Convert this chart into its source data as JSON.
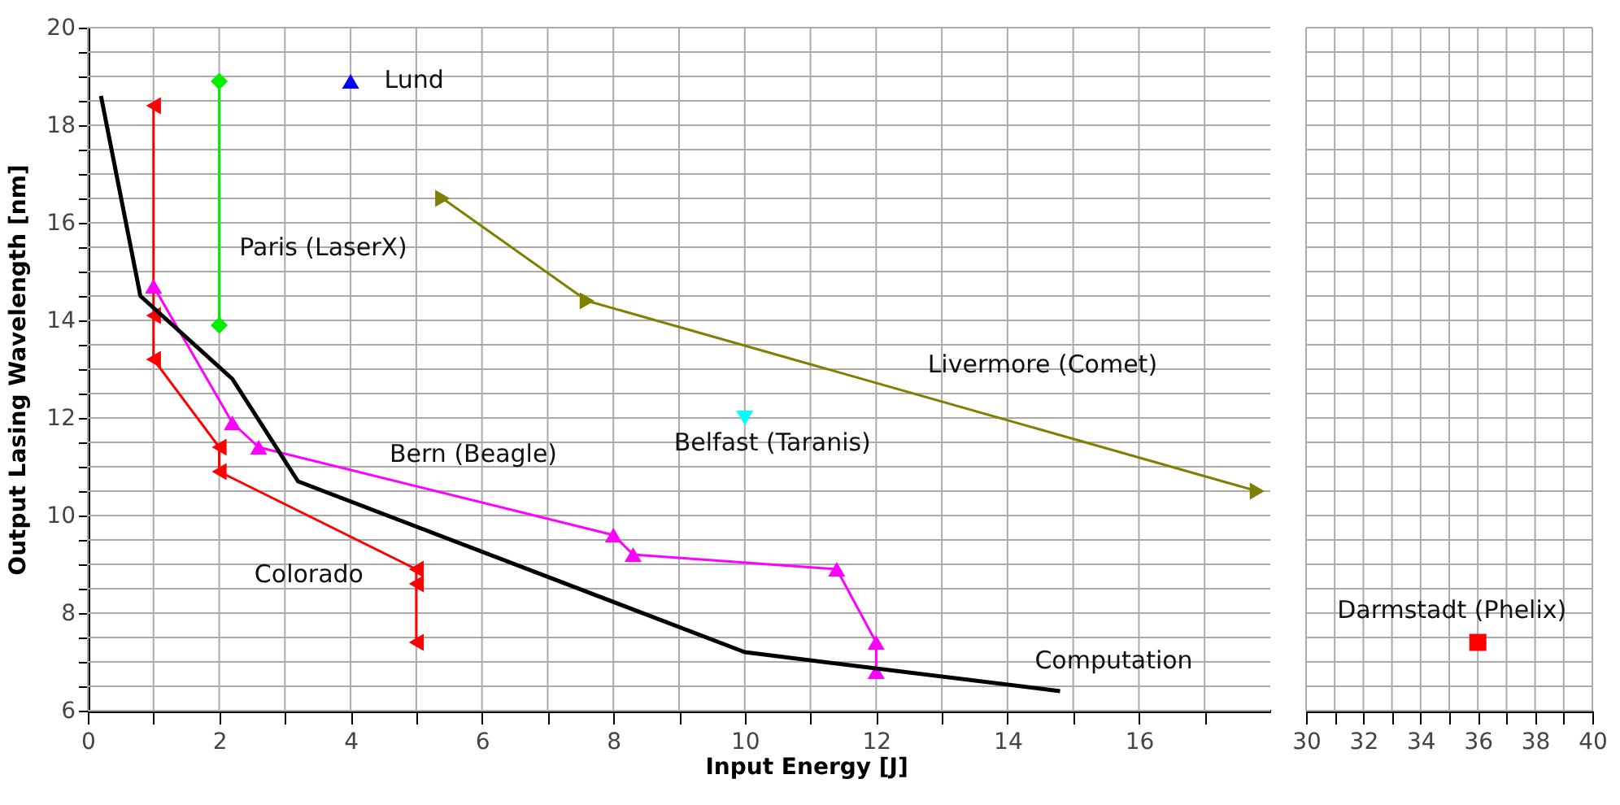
{
  "chart_data": [
    {
      "type": "line",
      "xlabel": "Input Energy [J]",
      "ylabel": "Output Lasing Wavelength [nm]",
      "xlim": [
        0,
        18
      ],
      "xticks": [
        0,
        {
          "value": 1,
          "label": null
        },
        2,
        {
          "value": 3,
          "label": null
        },
        4,
        {
          "value": 5,
          "label": null
        },
        6,
        {
          "value": 7,
          "label": null
        },
        8,
        {
          "value": 9,
          "label": null
        },
        10,
        {
          "value": 11,
          "label": null
        },
        12,
        {
          "value": 13,
          "label": null
        },
        14,
        {
          "value": 15,
          "label": null
        },
        16,
        {
          "value": 17,
          "label": null
        }
      ],
      "ylim": [
        6,
        20
      ],
      "yticks": [
        6,
        {
          "value": 6.5,
          "label": null
        },
        {
          "value": 7,
          "label": null
        },
        {
          "value": 7.5,
          "label": null
        },
        8,
        {
          "value": 8.5,
          "label": null
        },
        {
          "value": 9,
          "label": null
        },
        {
          "value": 9.5,
          "label": null
        },
        10,
        {
          "value": 10.5,
          "label": null
        },
        {
          "value": 11,
          "label": null
        },
        {
          "value": 11.5,
          "label": null
        },
        12,
        {
          "value": 12.5,
          "label": null
        },
        {
          "value": 13,
          "label": null
        },
        {
          "value": 13.5,
          "label": null
        },
        14,
        {
          "value": 14.5,
          "label": null
        },
        {
          "value": 15,
          "label": null
        },
        {
          "value": 15.5,
          "label": null
        },
        16,
        {
          "value": 16.5,
          "label": null
        },
        {
          "value": 17,
          "label": null
        },
        {
          "value": 17.5,
          "label": null
        },
        18,
        {
          "value": 18.5,
          "label": null
        },
        {
          "value": 19,
          "label": null
        },
        {
          "value": 19.5,
          "label": null
        },
        20
      ],
      "grid": true,
      "series": [
        {
          "name": "Colorado",
          "color": "#ff0000",
          "marker": "triangle-left",
          "x": [
            1.0,
            1.0,
            1.0,
            2.0,
            2.0,
            5.0,
            5.0,
            5.0
          ],
          "values": [
            18.4,
            14.1,
            13.2,
            11.4,
            10.9,
            8.9,
            8.6,
            7.4
          ]
        },
        {
          "name": "Paris (LaserX)",
          "color": "#00ee00",
          "marker": "diamond",
          "x": [
            2.0,
            2.0
          ],
          "values": [
            18.9,
            13.9
          ]
        },
        {
          "name": "Lund",
          "type": "scatter",
          "color": "#0000ff",
          "marker": "triangle",
          "x": [
            4.0
          ],
          "values": [
            18.9
          ]
        },
        {
          "name": "Livermore (Comet)",
          "color": "#808000",
          "marker": "triangle-right",
          "x": [
            5.4,
            7.6,
            17.8
          ],
          "values": [
            16.5,
            14.4,
            10.5
          ]
        },
        {
          "name": "Belfast (Taranis)",
          "type": "scatter",
          "color": "#00ffff",
          "marker": "triangle-down",
          "x": [
            10.0
          ],
          "values": [
            12.0
          ]
        },
        {
          "name": "Bern (Beagle)",
          "color": "#ff00ff",
          "marker": "triangle",
          "x": [
            1.0,
            2.2,
            2.6,
            8.0,
            8.3,
            11.4,
            12.0,
            12.0
          ],
          "values": [
            14.7,
            11.9,
            11.4,
            9.6,
            9.2,
            8.9,
            7.4,
            6.8
          ]
        },
        {
          "name": "Computation",
          "color": "#000000",
          "marker": "none",
          "x": [
            0.2,
            0.8,
            2.2,
            3.2,
            10.0,
            14.8
          ],
          "values": [
            18.6,
            14.5,
            12.8,
            10.7,
            7.2,
            6.4
          ]
        }
      ]
    },
    {
      "type": "scatter",
      "xlim": [
        30,
        40
      ],
      "xticks": [
        30,
        {
          "value": 31,
          "label": null
        },
        32,
        {
          "value": 33,
          "label": null
        },
        34,
        {
          "value": 35,
          "label": null
        },
        36,
        {
          "value": 37,
          "label": null
        },
        38,
        {
          "value": 39,
          "label": null
        },
        40
      ],
      "ylim": [
        6,
        20
      ],
      "yticks": [
        6,
        {
          "value": 6.5,
          "label": null
        },
        {
          "value": 7,
          "label": null
        },
        {
          "value": 7.5,
          "label": null
        },
        8,
        {
          "value": 8.5,
          "label": null
        },
        {
          "value": 9,
          "label": null
        },
        {
          "value": 9.5,
          "label": null
        },
        10,
        {
          "value": 10.5,
          "label": null
        },
        {
          "value": 11,
          "label": null
        },
        {
          "value": 11.5,
          "label": null
        },
        12,
        {
          "value": 12.5,
          "label": null
        },
        {
          "value": 13,
          "label": null
        },
        {
          "value": 13.5,
          "label": null
        },
        14,
        {
          "value": 14.5,
          "label": null
        },
        {
          "value": 15,
          "label": null
        },
        {
          "value": 15.5,
          "label": null
        },
        16,
        {
          "value": 16.5,
          "label": null
        },
        {
          "value": 17,
          "label": null
        },
        {
          "value": 17.5,
          "label": null
        },
        18,
        {
          "value": 18.5,
          "label": null
        },
        {
          "value": 19,
          "label": null
        },
        {
          "value": 19.5,
          "label": null
        },
        20
      ],
      "grid": true,
      "tick_labels": "x",
      "series": [
        {
          "name": "Darmstadt (Phelix)",
          "color": "#ff0000",
          "marker": "square",
          "x": [
            36
          ],
          "values": [
            7.4
          ]
        }
      ]
    }
  ]
}
